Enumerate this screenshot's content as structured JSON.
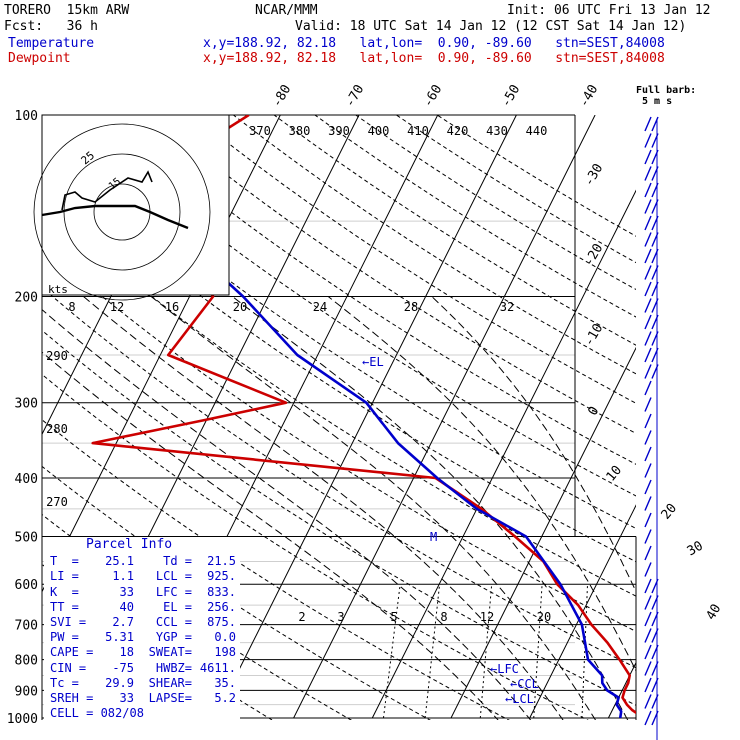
{
  "header": {
    "model": "TORERO  15km ARW",
    "center": "NCAR/MMM",
    "init": "Init: 06 UTC Fri 13 Jan 12",
    "fcst": "Fcst:   36 h",
    "valid": "Valid: 18 UTC Sat 14 Jan 12 (12 CST Sat 14 Jan 12)",
    "temperature_label": "Temperature",
    "dewpoint_label": "Dewpoint",
    "temp_loc": "x,y=188.92, 82.18   lat,lon=  0.90, -89.60   stn=SEST,84008",
    "dew_loc": "x,y=188.92, 82.18   lat,lon=  0.90, -89.60   stn=SEST,84008",
    "colors": {
      "temperature": "#cc0000",
      "dewpoint": "#0000cc",
      "text": "#000000"
    }
  },
  "full_barb_label": "Full barb:",
  "full_barb_value": "5 m s",
  "parcel": {
    "title": "Parcel Info",
    "rows": [
      [
        "T  =",
        "25.1",
        "Td =",
        "21.5"
      ],
      [
        "LI =",
        "1.1",
        "LCL =",
        "925."
      ],
      [
        "K  =",
        "33",
        "LFC =",
        "833."
      ],
      [
        "TT =",
        "40",
        "EL =",
        "256."
      ],
      [
        "SVI =",
        "2.7",
        "CCL =",
        "875."
      ],
      [
        "PW =",
        "5.31",
        "YGP =",
        "0.0"
      ],
      [
        "CAPE =",
        "18",
        "SWEAT=",
        "198"
      ],
      [
        "CIN =",
        "-75",
        "HWBZ=",
        "4611."
      ],
      [
        "Tc =",
        "29.9",
        "SHEAR=",
        "35."
      ],
      [
        "SREH =",
        "33",
        "LAPSE=",
        "5.2"
      ]
    ],
    "cell": "CELL = 082/08"
  },
  "hodograph": {
    "ring_label_25": "25",
    "ring_label_15": "15",
    "units": "kts"
  },
  "chart_data": {
    "type": "line",
    "title": "",
    "y_axis": "pressure (hPa), log scale",
    "pressure_levels": [
      100,
      200,
      300,
      400,
      500,
      600,
      700,
      800,
      900,
      1000
    ],
    "pressure_labels": [
      "100",
      "200",
      "300",
      "400",
      "500",
      "600",
      "700",
      "800",
      "900",
      "1000"
    ],
    "isotherm_labels": [
      "-80",
      "-70",
      "-60",
      "-50",
      "-40",
      "-30",
      "-20",
      "-10",
      "0",
      "10",
      "20",
      "30",
      "40"
    ],
    "theta_labels": [
      "370",
      "380",
      "390",
      "400",
      "410",
      "420",
      "430",
      "440"
    ],
    "theta_low_labels": [
      "290",
      "280",
      "270"
    ],
    "mixing_ratio_labels": [
      "8",
      "12",
      "16",
      "20",
      "24",
      "28",
      "32"
    ],
    "mixing_ratio_low_labels": [
      "2",
      "3",
      "5",
      "8",
      "12",
      "20"
    ],
    "annotations": [
      "EL",
      "M",
      "LFC",
      "CCL",
      "LCL"
    ],
    "series": [
      {
        "name": "Temperature",
        "color": "#cc0000",
        "points": [
          [
            1000,
            24.5
          ],
          [
            970,
            22.5
          ],
          [
            950,
            21.5
          ],
          [
            925,
            20.5
          ],
          [
            900,
            20.3
          ],
          [
            875,
            20.3
          ],
          [
            850,
            20.0
          ],
          [
            800,
            17.7
          ],
          [
            750,
            15.1
          ],
          [
            700,
            11.9
          ],
          [
            650,
            9.0
          ],
          [
            600,
            5.0
          ],
          [
            550,
            1.8
          ],
          [
            500,
            -3.4
          ],
          [
            450,
            -9.4
          ],
          [
            400,
            -17.2
          ],
          [
            350,
            -63.0
          ],
          [
            320,
            -50.0
          ],
          [
            300,
            -41.0
          ],
          [
            250,
            -59.0
          ],
          [
            200,
            -57.0
          ],
          [
            150,
            -69.0
          ],
          [
            120,
            -70.5
          ],
          [
            100,
            -64.0
          ]
        ]
      },
      {
        "name": "Dewpoint",
        "color": "#0000cc",
        "points": [
          [
            1000,
            21.5
          ],
          [
            975,
            21.2
          ],
          [
            950,
            20.2
          ],
          [
            925,
            20.0
          ],
          [
            900,
            18.1
          ],
          [
            875,
            17.0
          ],
          [
            850,
            16.5
          ],
          [
            800,
            13.7
          ],
          [
            700,
            10.7
          ],
          [
            600,
            5.4
          ],
          [
            500,
            -2.0
          ],
          [
            450,
            -10.0
          ],
          [
            400,
            -17.0
          ],
          [
            350,
            -24.2
          ],
          [
            300,
            -30.8
          ],
          [
            250,
            -42.6
          ],
          [
            200,
            -53.2
          ],
          [
            150,
            -68.4
          ],
          [
            120,
            -77.5
          ],
          [
            100,
            -78.5
          ]
        ]
      }
    ]
  }
}
